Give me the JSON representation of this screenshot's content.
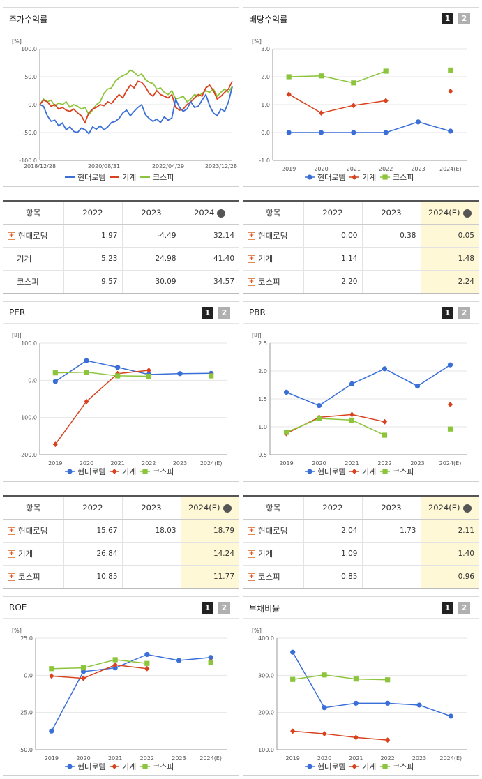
{
  "colors": {
    "hyundai": "#3a6fd8",
    "machine": "#d8421e",
    "kospi": "#8cc43c"
  },
  "legend": [
    "현대로템",
    "기계",
    "코스피"
  ],
  "panels": {
    "stock": {
      "title": "주가수익률"
    },
    "div": {
      "title": "배당수익률"
    },
    "per": {
      "title": "PER"
    },
    "pbr": {
      "title": "PBR"
    },
    "roe": {
      "title": "ROE"
    },
    "debt": {
      "title": "부채비율"
    }
  },
  "pager": [
    "1",
    "2"
  ],
  "tables": {
    "stock": {
      "header": [
        "항목",
        "2022",
        "2023",
        "2024"
      ],
      "rows": [
        {
          "name": "현대로템",
          "v": [
            "1.97",
            "-4.49",
            "32.14"
          ]
        },
        {
          "name": "기계",
          "v": [
            "5.23",
            "24.98",
            "41.40"
          ]
        },
        {
          "name": "코스피",
          "v": [
            "9.57",
            "30.09",
            "34.57"
          ]
        }
      ]
    },
    "div": {
      "header": [
        "항목",
        "2022",
        "2023",
        "2024(E)"
      ],
      "rows": [
        {
          "name": "현대로템",
          "v": [
            "0.00",
            "0.38",
            "0.05"
          ]
        },
        {
          "name": "기계",
          "v": [
            "1.14",
            "",
            "1.48"
          ]
        },
        {
          "name": "코스피",
          "v": [
            "2.20",
            "",
            "2.24"
          ]
        }
      ]
    },
    "per": {
      "header": [
        "항목",
        "2022",
        "2023",
        "2024(E)"
      ],
      "rows": [
        {
          "name": "현대로템",
          "v": [
            "15.67",
            "18.03",
            "18.79"
          ]
        },
        {
          "name": "기계",
          "v": [
            "26.84",
            "",
            "14.24"
          ]
        },
        {
          "name": "코스피",
          "v": [
            "10.85",
            "",
            "11.77"
          ]
        }
      ]
    },
    "pbr": {
      "header": [
        "항목",
        "2022",
        "2023",
        "2024(E)"
      ],
      "rows": [
        {
          "name": "현대로템",
          "v": [
            "2.04",
            "1.73",
            "2.11"
          ]
        },
        {
          "name": "기계",
          "v": [
            "1.09",
            "",
            "1.40"
          ]
        },
        {
          "name": "코스피",
          "v": [
            "0.85",
            "",
            "0.96"
          ]
        }
      ]
    }
  },
  "chart_data": [
    {
      "id": "stock",
      "type": "line",
      "unit": "[%]",
      "x_ticks": [
        "2018/12/28",
        "2020/08/31",
        "2022/04/29",
        "2023/12/28"
      ],
      "ylim": [
        -100,
        100
      ],
      "y_ticks": [
        "100.0",
        "50.0",
        "0.0",
        "-50.0",
        "-100.0"
      ],
      "series": [
        {
          "name": "현대로템",
          "values": [
            0,
            -3,
            -20,
            -30,
            -28,
            -38,
            -33,
            -45,
            -40,
            -48,
            -50,
            -42,
            -45,
            -52,
            -40,
            -44,
            -38,
            -45,
            -40,
            -32,
            -30,
            -25,
            -15,
            -10,
            -20,
            -12,
            -5,
            0,
            -18,
            -25,
            -30,
            -26,
            -32,
            -22,
            -28,
            -24,
            10,
            -5,
            -12,
            -8,
            5,
            -5,
            -3,
            8,
            18,
            -2,
            -15,
            -20,
            -8,
            -12,
            5,
            32
          ]
        },
        {
          "name": "기계",
          "values": [
            0,
            8,
            5,
            -3,
            0,
            -8,
            -5,
            -10,
            -12,
            -8,
            -15,
            -20,
            -32,
            -15,
            -8,
            -5,
            0,
            -2,
            5,
            2,
            10,
            18,
            12,
            25,
            35,
            30,
            42,
            40,
            32,
            20,
            15,
            25,
            18,
            15,
            12,
            18,
            -5,
            -10,
            -8,
            0,
            5,
            12,
            18,
            15,
            30,
            35,
            25,
            10,
            15,
            22,
            28,
            42
          ]
        },
        {
          "name": "코스피",
          "values": [
            0,
            10,
            5,
            8,
            -2,
            3,
            0,
            5,
            -5,
            0,
            -3,
            -8,
            -5,
            -18,
            -10,
            0,
            5,
            20,
            28,
            30,
            42,
            48,
            52,
            55,
            62,
            58,
            52,
            55,
            45,
            40,
            38,
            28,
            30,
            22,
            18,
            25,
            10,
            12,
            15,
            5,
            10,
            18,
            15,
            20,
            25,
            22,
            28,
            15,
            22,
            28,
            22,
            33
          ]
        }
      ]
    },
    {
      "id": "div",
      "type": "line",
      "unit": "[%]",
      "categories": [
        "2019",
        "2020",
        "2021",
        "2022",
        "2023",
        "2024(E)"
      ],
      "ylim": [
        -1,
        3
      ],
      "y_ticks": [
        "3.0",
        "2.0",
        "1.0",
        "0.0",
        "-1.0"
      ],
      "series": [
        {
          "name": "현대로템",
          "values": [
            0.0,
            0.0,
            0.0,
            0.0,
            0.38,
            0.05
          ]
        },
        {
          "name": "기계",
          "values": [
            1.37,
            0.7,
            0.97,
            1.14,
            null,
            1.48
          ]
        },
        {
          "name": "코스피",
          "values": [
            2.0,
            2.03,
            1.78,
            2.2,
            null,
            2.24
          ]
        }
      ]
    },
    {
      "id": "per",
      "type": "line",
      "unit": "[배]",
      "categories": [
        "2019",
        "2020",
        "2021",
        "2022",
        "2023",
        "2024(E)"
      ],
      "ylim": [
        -200,
        100
      ],
      "y_ticks": [
        "100.0",
        "0.0",
        "-100.0",
        "-200.0"
      ],
      "series": [
        {
          "name": "현대로템",
          "values": [
            -3,
            53,
            35,
            15.67,
            18.03,
            18.79
          ]
        },
        {
          "name": "기계",
          "values": [
            -172,
            -57,
            18,
            26.84,
            null,
            14.24
          ]
        },
        {
          "name": "코스피",
          "values": [
            20,
            22,
            12,
            10.85,
            null,
            11.77
          ]
        }
      ]
    },
    {
      "id": "pbr",
      "type": "line",
      "unit": "[배]",
      "categories": [
        "2019",
        "2020",
        "2021",
        "2022",
        "2023",
        "2024(E)"
      ],
      "ylim": [
        0.5,
        2.5
      ],
      "y_ticks": [
        "2.5",
        "2.0",
        "1.5",
        "1.0",
        "0.5"
      ],
      "series": [
        {
          "name": "현대로템",
          "values": [
            1.62,
            1.38,
            1.77,
            2.04,
            1.73,
            2.11
          ]
        },
        {
          "name": "기계",
          "values": [
            0.88,
            1.17,
            1.22,
            1.09,
            null,
            1.4
          ]
        },
        {
          "name": "코스피",
          "values": [
            0.9,
            1.15,
            1.12,
            0.85,
            null,
            0.96
          ]
        }
      ]
    },
    {
      "id": "roe",
      "type": "line",
      "unit": "[%]",
      "categories": [
        "2019",
        "2020",
        "2021",
        "2022",
        "2023",
        "2024(E)"
      ],
      "ylim": [
        -50,
        25
      ],
      "y_ticks": [
        "25.0",
        "0.0",
        "-25.0",
        "-50.0"
      ],
      "series": [
        {
          "name": "현대로템",
          "values": [
            -37.5,
            2.5,
            5,
            14,
            10,
            12
          ]
        },
        {
          "name": "기계",
          "values": [
            -0.5,
            -2,
            7,
            4.5,
            null,
            9.5
          ]
        },
        {
          "name": "코스피",
          "values": [
            4.5,
            5,
            10.5,
            8,
            null,
            8.5
          ]
        }
      ]
    },
    {
      "id": "debt",
      "type": "line",
      "unit": "[%]",
      "categories": [
        "2019",
        "2020",
        "2021",
        "2022",
        "2023",
        "2024(E)"
      ],
      "ylim": [
        100,
        400
      ],
      "y_ticks": [
        "400.0",
        "300.0",
        "200.0",
        "100.0"
      ],
      "series": [
        {
          "name": "현대로템",
          "values": [
            362,
            213,
            225,
            225,
            220,
            190
          ]
        },
        {
          "name": "기계",
          "values": [
            150,
            143,
            133,
            126,
            null,
            null
          ]
        },
        {
          "name": "코스피",
          "values": [
            289,
            301,
            290,
            288,
            null,
            null
          ]
        }
      ]
    }
  ]
}
